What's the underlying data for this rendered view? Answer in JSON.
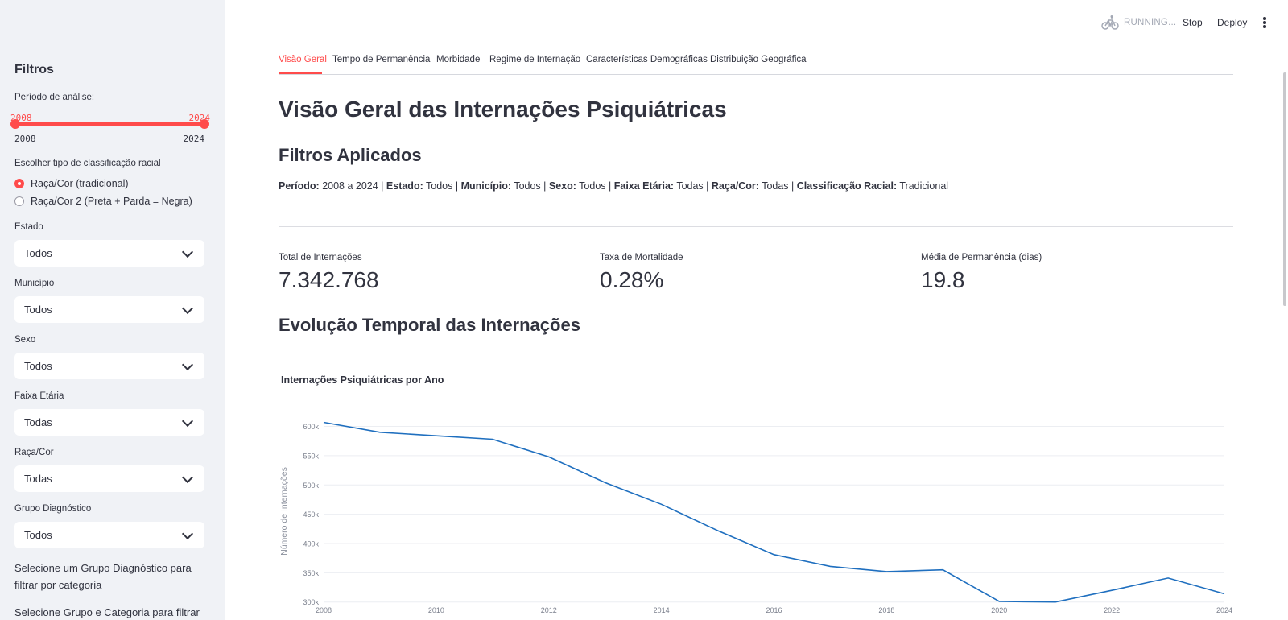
{
  "sidebar": {
    "title": "Filtros",
    "period": {
      "label": "Período de análise:",
      "start_value": "2008",
      "end_value": "2024",
      "min_label": "2008",
      "max_label": "2024",
      "selected_start_fraction": 0,
      "selected_end_fraction": 1
    },
    "racial": {
      "label": "Escolher tipo de classificação racial",
      "options": [
        "Raça/Cor (tradicional)",
        "Raça/Cor 2 (Preta + Parda = Negra)"
      ],
      "selected_index": 0
    },
    "estado": {
      "label": "Estado",
      "value": "Todos"
    },
    "municipio": {
      "label": "Município",
      "value": "Todos"
    },
    "sexo": {
      "label": "Sexo",
      "value": "Todos"
    },
    "faixa": {
      "label": "Faixa Etária",
      "value": "Todas"
    },
    "raca": {
      "label": "Raça/Cor",
      "value": "Todas"
    },
    "grupo": {
      "label": "Grupo Diagnóstico",
      "value": "Todos"
    },
    "hint1": "Selecione um Grupo Diagnóstico para filtrar por categoria",
    "hint2": "Selecione Grupo e Categoria para filtrar"
  },
  "header": {
    "status": "RUNNING...",
    "stop_label": "Stop",
    "deploy_label": "Deploy",
    "status_icon": "bike-icon",
    "menu_icon": "more-vertical-icon"
  },
  "tabs": [
    {
      "label": "Visão Geral",
      "active": true
    },
    {
      "label": "Tempo de Permanência",
      "active": false
    },
    {
      "label": "Morbidade",
      "active": false
    },
    {
      "label": "Regime de Internação",
      "active": false
    },
    {
      "label": "Características Demográficas",
      "active": false
    },
    {
      "label": "Distribuição Geográfica",
      "active": false
    }
  ],
  "main": {
    "title": "Visão Geral das Internações Psiquiátricas",
    "filters_heading": "Filtros Aplicados",
    "filters": [
      {
        "k": "Período:",
        "v": "2008 a 2024"
      },
      {
        "k": "Estado:",
        "v": "Todos"
      },
      {
        "k": "Município:",
        "v": "Todos"
      },
      {
        "k": "Sexo:",
        "v": "Todos"
      },
      {
        "k": "Faixa Etária:",
        "v": "Todas"
      },
      {
        "k": "Raça/Cor:",
        "v": "Todas"
      },
      {
        "k": "Classificação Racial:",
        "v": "Tradicional"
      }
    ],
    "metrics": [
      {
        "label": "Total de Internações",
        "value": "7.342.768"
      },
      {
        "label": "Taxa de Mortalidade",
        "value": "0.28%"
      },
      {
        "label": "Média de Permanência (dias)",
        "value": "19.8"
      }
    ],
    "evolution_heading": "Evolução Temporal das Internações"
  },
  "colors": {
    "accent": "#ff4b4b",
    "line": "#1f6fbf",
    "sidebar_bg": "#f0f2f6",
    "text": "#31333f"
  },
  "chart_data": {
    "type": "line",
    "title": "Internações Psiquiátricas por Ano",
    "xlabel": "",
    "ylabel": "Número de Internações",
    "x": [
      2008,
      2009,
      2010,
      2011,
      2012,
      2013,
      2014,
      2015,
      2016,
      2017,
      2018,
      2019,
      2020,
      2021,
      2022,
      2023,
      2024
    ],
    "series": [
      {
        "values": [
          607000,
          590000,
          584000,
          578000,
          548000,
          504000,
          467000,
          422000,
          381000,
          361000,
          352000,
          355000,
          301000,
          300000,
          320000,
          341000,
          314000
        ]
      }
    ],
    "xticks": [
      "2008",
      "2010",
      "2012",
      "2014",
      "2016",
      "2018",
      "2020",
      "2022",
      "2024"
    ],
    "yticks": [
      300000,
      350000,
      400000,
      450000,
      500000,
      550000,
      600000
    ],
    "ytick_labels": [
      "300k",
      "350k",
      "400k",
      "450k",
      "500k",
      "550k",
      "600k"
    ],
    "xlim": [
      2008,
      2024
    ],
    "grid": true
  }
}
